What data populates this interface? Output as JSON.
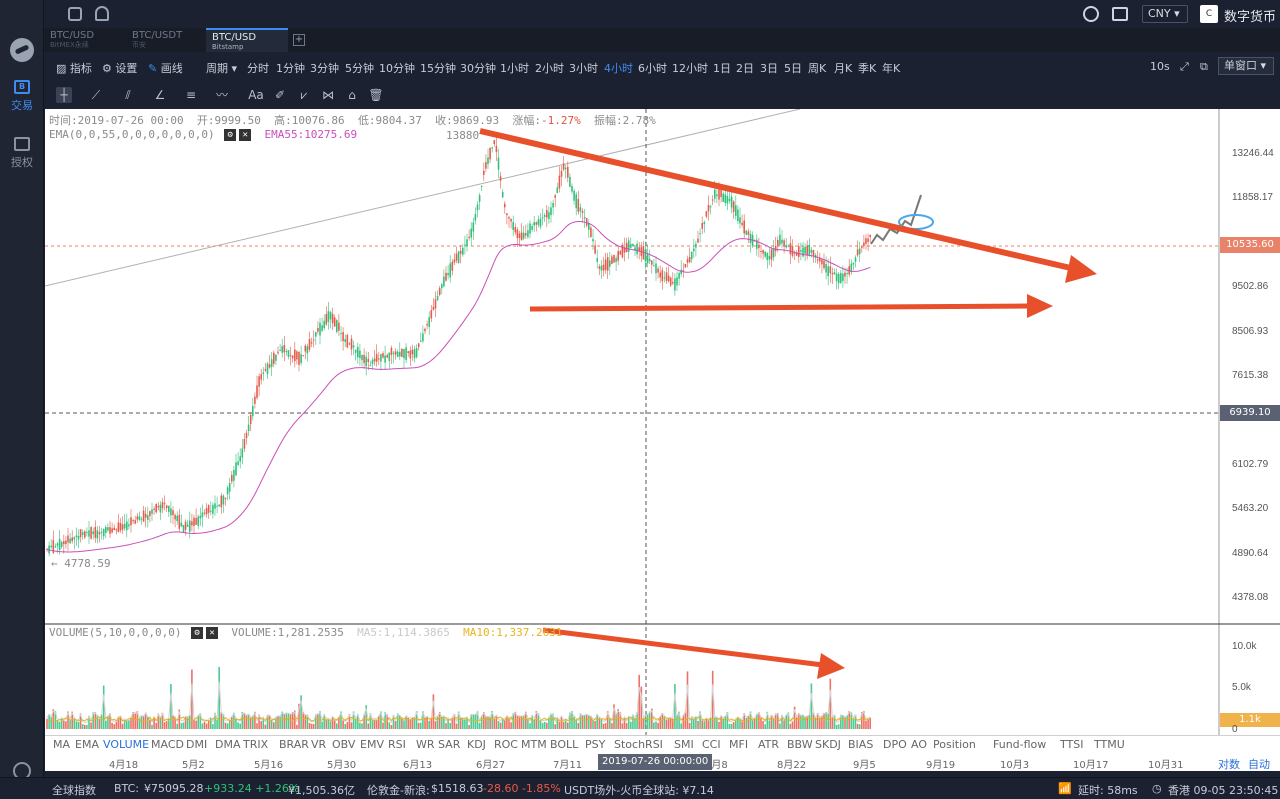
{
  "topbar": {
    "currency": "CNY",
    "user_badge": "C",
    "user_name": "数字货币大空头"
  },
  "tabs": [
    {
      "pair": "BTC/USD",
      "exchange": "BitMEX永续"
    },
    {
      "pair": "BTC/USDT",
      "exchange": "币安"
    },
    {
      "pair": "BTC/USD",
      "exchange": "Bitstamp"
    }
  ],
  "tab_add": "+",
  "rail": {
    "trade_label": "交易",
    "auth_label": "授权",
    "trade_icon": "B"
  },
  "toolbar": {
    "indicator": "指标",
    "settings": "设置",
    "draw": "画线",
    "period": "周期",
    "intervals": [
      "分时",
      "1分钟",
      "3分钟",
      "5分钟",
      "10分钟",
      "15分钟",
      "30分钟",
      "1小时",
      "2小时",
      "3小时",
      "4小时",
      "6小时",
      "12小时",
      "1日",
      "2日",
      "3日",
      "5日",
      "周K",
      "月K",
      "季K",
      "年K"
    ],
    "active_interval": "4小时",
    "refresh": "10s",
    "window_mode": "单窗口"
  },
  "ohlc": {
    "time": "时间:2019-07-26 00:00",
    "open": "开:9999.50",
    "high": "高:10076.86",
    "low": "低:9804.37",
    "close": "收:9869.93",
    "change_label": "涨幅:",
    "change": "-1.27%",
    "amplitude": "振幅:2.78%"
  },
  "ema": {
    "params": "EMA(0,0,55,0,0,0,0,0,0,0)",
    "ema55": "EMA55:10275.69"
  },
  "volume": {
    "params": "VOLUME(5,10,0,0,0,0)",
    "value": "VOLUME:1,281.2535",
    "ma5": "MA5:1,114.3865",
    "ma10": "MA10:1,337.2631"
  },
  "chart_labels": {
    "high_mark": "13880",
    "low_mark": "← 4778.59"
  },
  "price_axis": [
    "13246.44",
    "11858.17",
    "9502.86",
    "8506.93",
    "7615.38",
    "6102.79",
    "5463.20",
    "4890.64",
    "4378.08"
  ],
  "price_tags": {
    "current": "10535.60",
    "crosshair": "6939.10"
  },
  "volume_axis": [
    "10.0k",
    "5.0k",
    "1.1k",
    "0"
  ],
  "indicators": [
    "MA",
    "EMA",
    "VOLUME",
    "MACD",
    "DMI",
    "DMA",
    "TRIX",
    "BRAR",
    "VR",
    "OBV",
    "EMV",
    "RSI",
    "WR",
    "SAR",
    "KDJ",
    "ROC",
    "MTM",
    "BOLL",
    "PSY",
    "StochRSI",
    "SMI",
    "CCI",
    "MFI",
    "ATR",
    "BBW",
    "SKDJ",
    "BIAS",
    "DPO",
    "AO",
    "Position",
    "Fund-flow",
    "TTSI",
    "TTMU"
  ],
  "active_indicator": "VOLUME",
  "dates": [
    "4月18",
    "5月2",
    "5月16",
    "5月30",
    "6月13",
    "6月27",
    "7月11",
    "8月8",
    "8月22",
    "9月5",
    "9月19",
    "10月3",
    "10月17",
    "10月31"
  ],
  "crosshair_date": "2019-07-26 00:00:00",
  "axis_modes": [
    "对数",
    "自动"
  ],
  "footer": {
    "index": "全球指数",
    "btc_label": "BTC:",
    "btc_price": "¥75095.28",
    "btc_change": "+933.24 +1.26%",
    "btc_volume": "¥1,505.36亿",
    "gold_label": "伦敦金-新浪:",
    "gold_price": "$1518.63",
    "gold_change": "-28.60 -1.85%",
    "usdt": "USDT场外-火币全球站: ¥7.14",
    "latency": "延时: 58ms",
    "clock": "香港 09-05 23:50:45"
  },
  "colors": {
    "up": "#2fc07c",
    "down": "#e55b4b",
    "accent": "#3f8cf0",
    "ema": "#c94fb8",
    "annotation": "#e8502c"
  },
  "icons": [
    "logo-icon",
    "window-icon",
    "bell-icon",
    "search-icon",
    "tshirt-icon",
    "settings-gear-icon",
    "crosshair-icon",
    "trendline-icon",
    "fib-icon",
    "angle-icon",
    "hline-icon",
    "wave-icon",
    "text-icon",
    "ruler-icon",
    "pattern-icon",
    "measure-icon",
    "lock-icon",
    "trash-icon",
    "wifi-icon",
    "clock-icon"
  ]
}
